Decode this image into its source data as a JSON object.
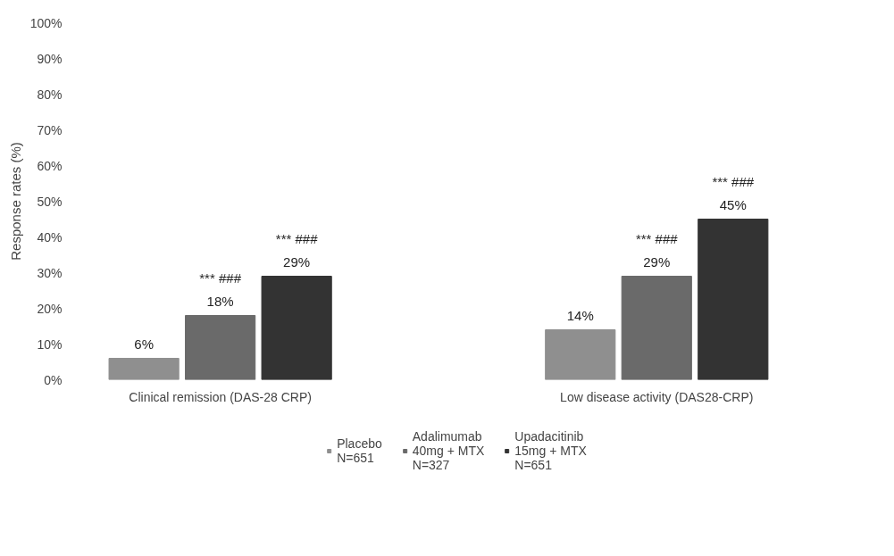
{
  "chart_data": {
    "type": "bar",
    "ylabel": "Response rates (%)",
    "categories": [
      "Clinical remission (DAS-28 CRP)",
      "Low disease activity (DAS28-CRP)"
    ],
    "series": [
      {
        "name": "Placebo\nN=651",
        "color": "#8f8f8f",
        "values": [
          6,
          14
        ],
        "value_labels": [
          "6%",
          "14%"
        ]
      },
      {
        "name": "Adalimumab\n40mg + MTX\nN=327",
        "color": "#6a6a6a",
        "values": [
          18,
          29
        ],
        "value_labels": [
          "*** ###\n18%",
          "*** ###\n29%"
        ]
      },
      {
        "name": "Upadacitinib\n15mg + MTX\nN=651",
        "color": "#333333",
        "values": [
          29,
          45
        ],
        "value_labels": [
          "*** ###\n29%",
          "*** ###\n45%"
        ]
      }
    ],
    "ylim": [
      0,
      100
    ],
    "yticks": [
      {
        "value": 0,
        "label": "0%"
      },
      {
        "value": 10,
        "label": "10%"
      },
      {
        "value": 20,
        "label": "20%"
      },
      {
        "value": 30,
        "label": "30%"
      },
      {
        "value": 40,
        "label": "40%"
      },
      {
        "value": 50,
        "label": "50%"
      },
      {
        "value": 60,
        "label": "60%"
      },
      {
        "value": 70,
        "label": "70%"
      },
      {
        "value": 80,
        "label": "80%"
      },
      {
        "value": 90,
        "label": "90%"
      },
      {
        "value": 100,
        "label": "100%"
      }
    ],
    "grid": false,
    "legend": "bottom"
  }
}
